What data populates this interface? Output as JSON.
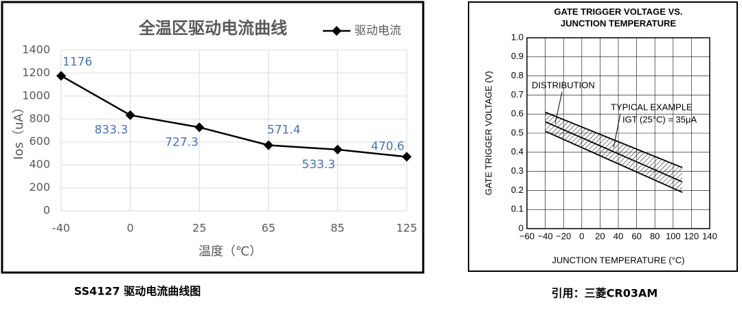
{
  "chart_data": [
    {
      "type": "line",
      "title": "全温区驱动电流曲线",
      "x_label": "温度（℃）",
      "y_label": "Ios（uA）",
      "categories": [
        "-40",
        "0",
        "25",
        "65",
        "85",
        "125"
      ],
      "series": [
        {
          "name": "驱动电流",
          "color": "#000000",
          "values": [
            1176,
            833.3,
            727.3,
            571.4,
            533.3,
            470.6
          ]
        }
      ],
      "label_color": "#4472c4",
      "ylim": [
        0,
        1400
      ],
      "yticks": [
        0,
        200,
        400,
        600,
        800,
        1000,
        1200,
        1400
      ],
      "grid": true
    },
    {
      "type": "band",
      "title": [
        "GATE TRIGGER VOLTAGE VS.",
        "JUNCTION TEMPERATURE"
      ],
      "x_label": "JUNCTION TEMPERATURE (°C)",
      "y_label": "GATE TRIGGER VOLTAGE (V)",
      "annotations": [
        "DISTRIBUTION",
        "TYPICAL EXAMPLE",
        "IGT (25°C) = 35μA"
      ],
      "x": [
        -40,
        110
      ],
      "series": [
        {
          "color": "#000000",
          "values": [
            0.61,
            0.32
          ]
        },
        {
          "color": "#000000",
          "values": [
            0.56,
            0.245
          ]
        },
        {
          "color": "#000000",
          "values": [
            0.51,
            0.19
          ]
        }
      ],
      "xlim": [
        -60,
        140
      ],
      "xticks": [
        {
          "value": -60,
          "label": "−60"
        },
        {
          "value": -40,
          "label": "−40"
        },
        {
          "value": -20,
          "label": "−20"
        },
        0,
        20,
        40,
        60,
        80,
        100,
        120,
        140
      ],
      "ylim": [
        0,
        1
      ],
      "yticks": [
        0,
        0.1,
        0.2,
        0.3,
        0.4,
        0.5,
        0.6,
        0.7,
        0.8,
        0.9,
        {
          "value": 1,
          "label": "1.0"
        }
      ],
      "grid": true
    }
  ],
  "captions": [
    "SS4127 驱动电流曲线图",
    "引用：三菱CR03AM"
  ]
}
